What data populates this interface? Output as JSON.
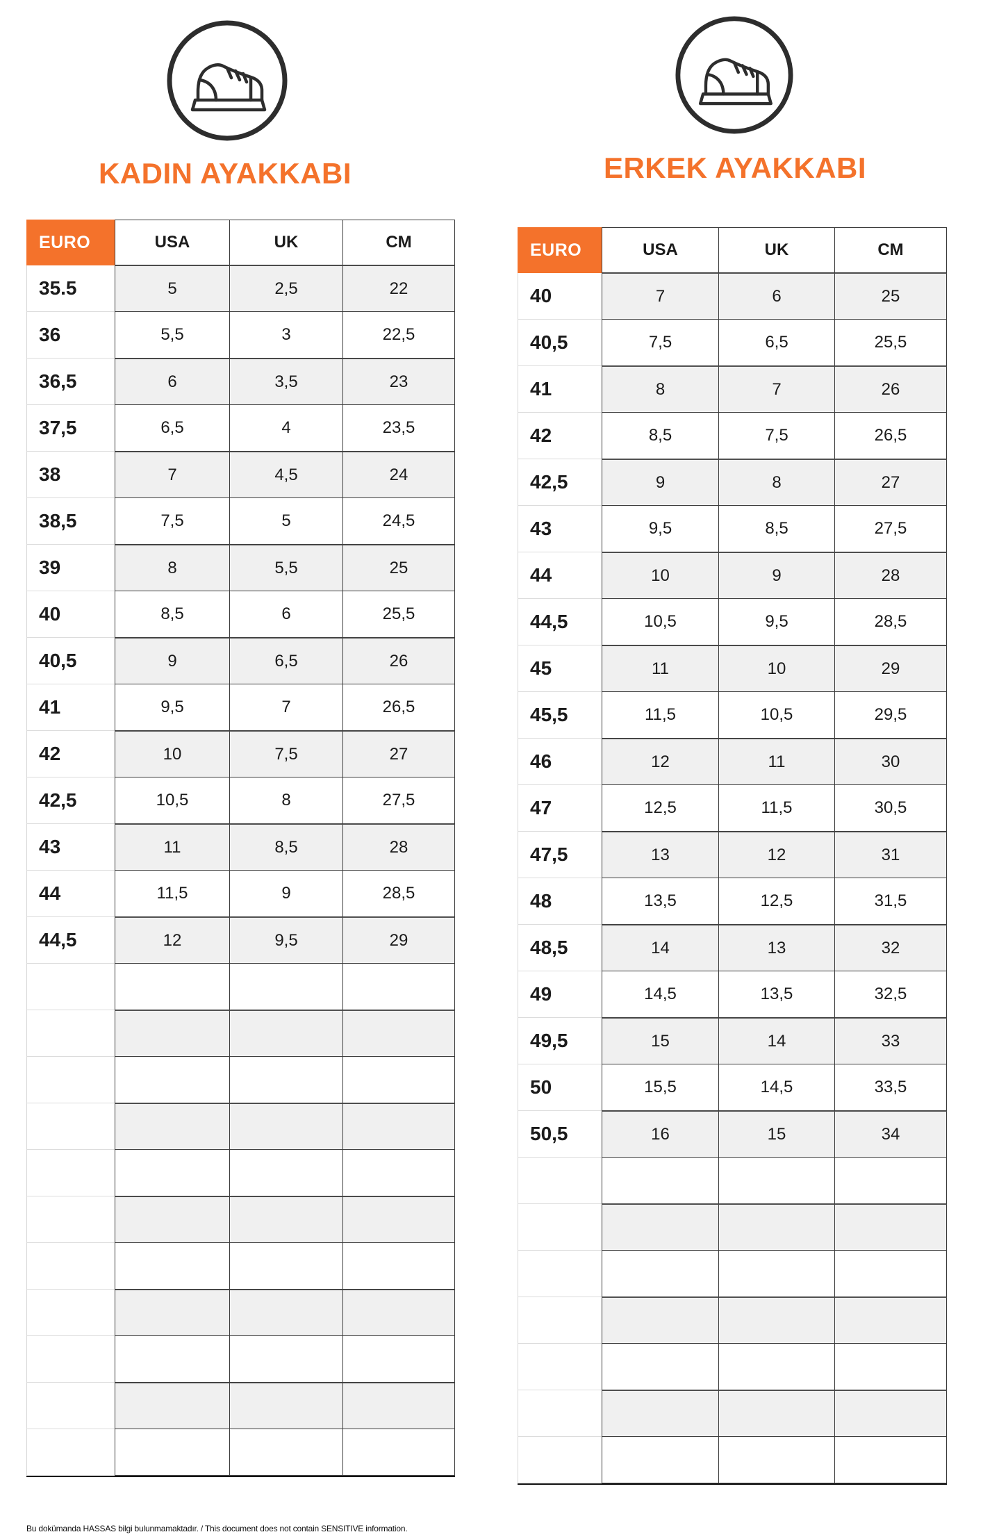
{
  "page": {
    "footer_note": "Bu dokümanda HASSAS bilgi bulunmamaktadır. / This document does not contain SENSITIVE information."
  },
  "colors": {
    "accent_orange": "#F4722B",
    "stripe_gray": "#F0F0F0",
    "border_dark": "#3B3B3B",
    "border_light": "#DCDCDC",
    "icon_stroke": "#2D2D2D"
  },
  "icons": {
    "left": "sneaker-icon",
    "right": "sneaker-icon"
  },
  "tables": [
    {
      "title": "KADIN AYAKKABI",
      "headers": [
        "EURO",
        "USA",
        "UK",
        "CM"
      ],
      "rows": [
        [
          "35.5",
          "5",
          "2,5",
          "22"
        ],
        [
          "36",
          "5,5",
          "3",
          "22,5"
        ],
        [
          "36,5",
          "6",
          "3,5",
          "23"
        ],
        [
          "37,5",
          "6,5",
          "4",
          "23,5"
        ],
        [
          "38",
          "7",
          "4,5",
          "24"
        ],
        [
          "38,5",
          "7,5",
          "5",
          "24,5"
        ],
        [
          "39",
          "8",
          "5,5",
          "25"
        ],
        [
          "40",
          "8,5",
          "6",
          "25,5"
        ],
        [
          "40,5",
          "9",
          "6,5",
          "26"
        ],
        [
          "41",
          "9,5",
          "7",
          "26,5"
        ],
        [
          "42",
          "10",
          "7,5",
          "27"
        ],
        [
          "42,5",
          "10,5",
          "8",
          "27,5"
        ],
        [
          "43",
          "11",
          "8,5",
          "28"
        ],
        [
          "44",
          "11,5",
          "9",
          "28,5"
        ],
        [
          "44,5",
          "12",
          "9,5",
          "29"
        ]
      ],
      "empty_row_count": 11
    },
    {
      "title": "ERKEK AYAKKABI",
      "headers": [
        "EURO",
        "USA",
        "UK",
        "CM"
      ],
      "rows": [
        [
          "40",
          "7",
          "6",
          "25"
        ],
        [
          "40,5",
          "7,5",
          "6,5",
          "25,5"
        ],
        [
          "41",
          "8",
          "7",
          "26"
        ],
        [
          "42",
          "8,5",
          "7,5",
          "26,5"
        ],
        [
          "42,5",
          "9",
          "8",
          "27"
        ],
        [
          "43",
          "9,5",
          "8,5",
          "27,5"
        ],
        [
          "44",
          "10",
          "9",
          "28"
        ],
        [
          "44,5",
          "10,5",
          "9,5",
          "28,5"
        ],
        [
          "45",
          "11",
          "10",
          "29"
        ],
        [
          "45,5",
          "11,5",
          "10,5",
          "29,5"
        ],
        [
          "46",
          "12",
          "11",
          "30"
        ],
        [
          "47",
          "12,5",
          "11,5",
          "30,5"
        ],
        [
          "47,5",
          "13",
          "12",
          "31"
        ],
        [
          "48",
          "13,5",
          "12,5",
          "31,5"
        ],
        [
          "48,5",
          "14",
          "13",
          "32"
        ],
        [
          "49",
          "14,5",
          "13,5",
          "32,5"
        ],
        [
          "49,5",
          "15",
          "14",
          "33"
        ],
        [
          "50",
          "15,5",
          "14,5",
          "33,5"
        ],
        [
          "50,5",
          "16",
          "15",
          "34"
        ]
      ],
      "empty_row_count": 7
    }
  ]
}
